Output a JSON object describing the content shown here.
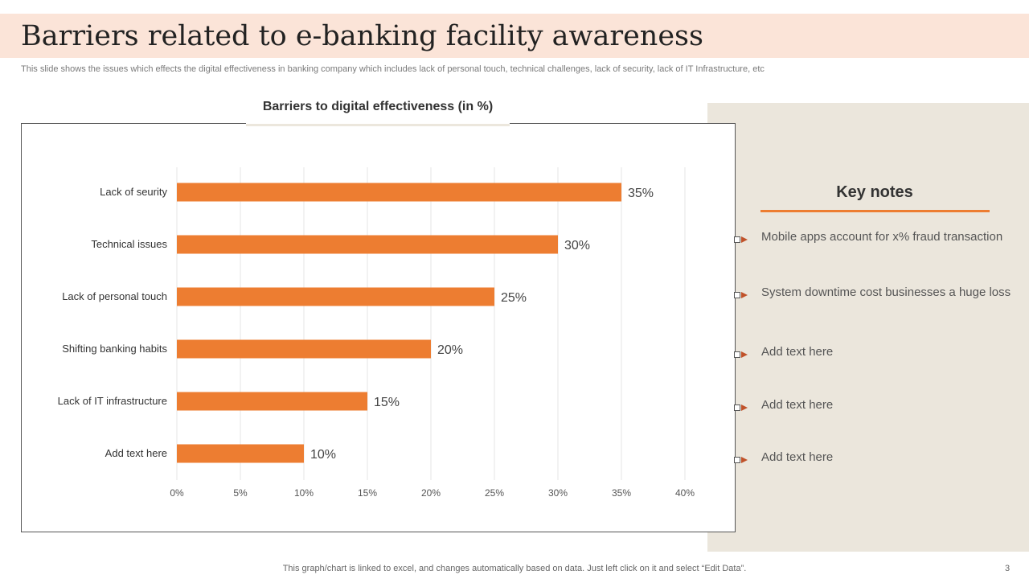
{
  "slide": {
    "title": "Barriers related to e-banking facility awareness",
    "subtitle": "This slide shows the issues which effects the digital effectiveness in banking company which includes lack of personal touch, technical challenges, lack of security, lack of IT Infrastructure, etc",
    "footer": "This graph/chart is linked to excel,  and changes automatically based on data. Just left click on it and select “Edit Data”.",
    "page_number": "3"
  },
  "key_notes": {
    "title": "Key notes",
    "items": [
      "Mobile apps account for x% fraud transaction",
      "System downtime cost businesses a huge loss",
      "Add text here",
      "Add text here",
      "Add text here"
    ]
  },
  "colors": {
    "bar": "#ed7d31",
    "title_band": "#fbe4d8",
    "panel": "#ebe6dc"
  },
  "chart_data": {
    "type": "bar",
    "orientation": "horizontal",
    "title": "Barriers to digital effectiveness (in %)",
    "categories": [
      "Lack of seurity",
      "Technical issues",
      "Lack of personal touch",
      "Shifting banking habits",
      "Lack of IT infrastructure",
      "Add text here"
    ],
    "values": [
      35,
      30,
      25,
      20,
      15,
      10
    ],
    "data_labels": [
      "35%",
      "30%",
      "25%",
      "20%",
      "15%",
      "10%"
    ],
    "x_ticks": [
      "0%",
      "5%",
      "10%",
      "15%",
      "20%",
      "25%",
      "30%",
      "35%",
      "40%"
    ],
    "xlim": [
      0,
      40
    ],
    "grid": true,
    "legend": false
  }
}
